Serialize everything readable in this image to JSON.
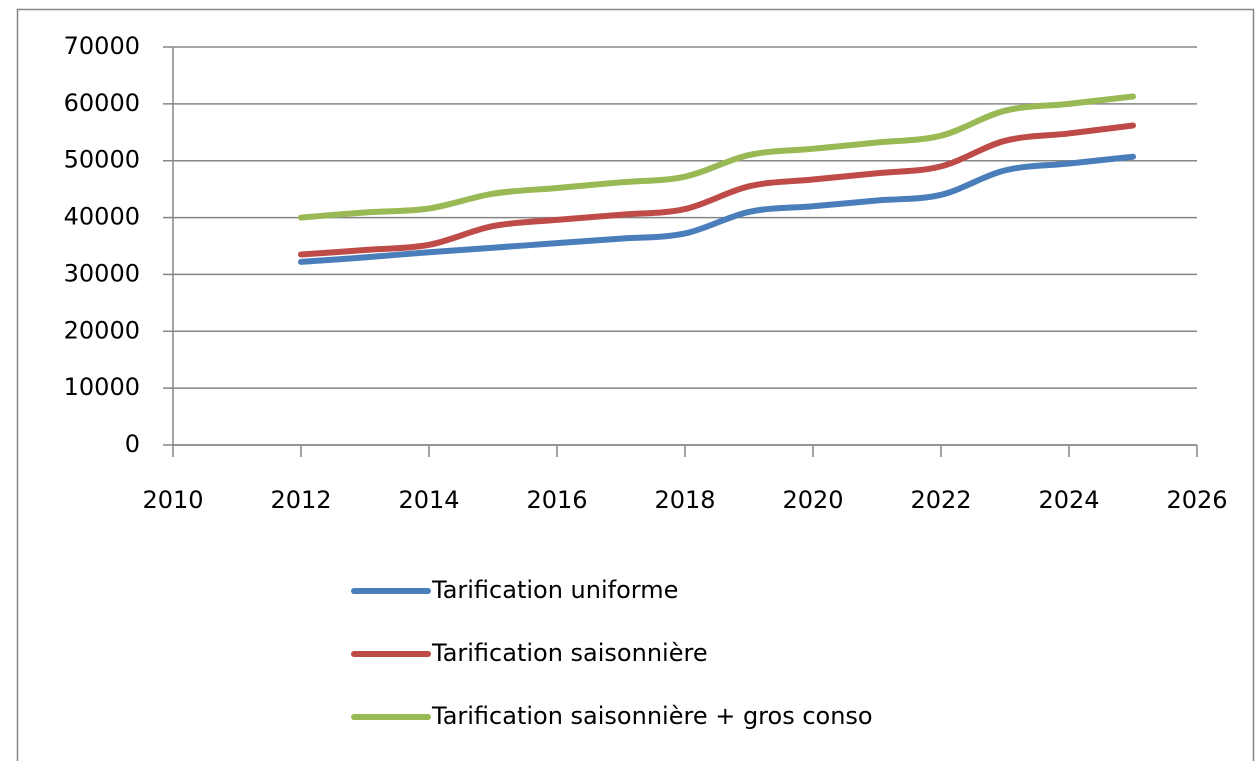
{
  "chart_data": {
    "type": "line",
    "x": [
      2012,
      2013,
      2014,
      2015,
      2016,
      2017,
      2018,
      2019,
      2020,
      2021,
      2022,
      2023,
      2024,
      2025
    ],
    "series": [
      {
        "name": "Tarification uniforme",
        "color": "#4a7ebb",
        "values": [
          32200,
          33000,
          33900,
          34700,
          35500,
          36300,
          37200,
          41000,
          42000,
          43000,
          44000,
          48300,
          49500,
          50700
        ]
      },
      {
        "name": "Tarification saisonnière",
        "color": "#be4b48",
        "values": [
          33500,
          34300,
          35200,
          38500,
          39600,
          40500,
          41500,
          45500,
          46700,
          47800,
          49000,
          53500,
          54800,
          56200
        ]
      },
      {
        "name": "Tarification saisonnière + gros conso",
        "color": "#98b954",
        "values": [
          40000,
          40900,
          41600,
          44200,
          45200,
          46200,
          47200,
          51000,
          52100,
          53200,
          54400,
          58800,
          60000,
          61300
        ]
      }
    ],
    "xlim": [
      2010,
      2026
    ],
    "xticks": [
      2010,
      2012,
      2014,
      2016,
      2018,
      2020,
      2022,
      2024,
      2026
    ],
    "ylim": [
      0,
      70000
    ],
    "yticks": [
      0,
      10000,
      20000,
      30000,
      40000,
      50000,
      60000,
      70000
    ],
    "grid": true,
    "legend": "bottom",
    "smooth": true
  }
}
